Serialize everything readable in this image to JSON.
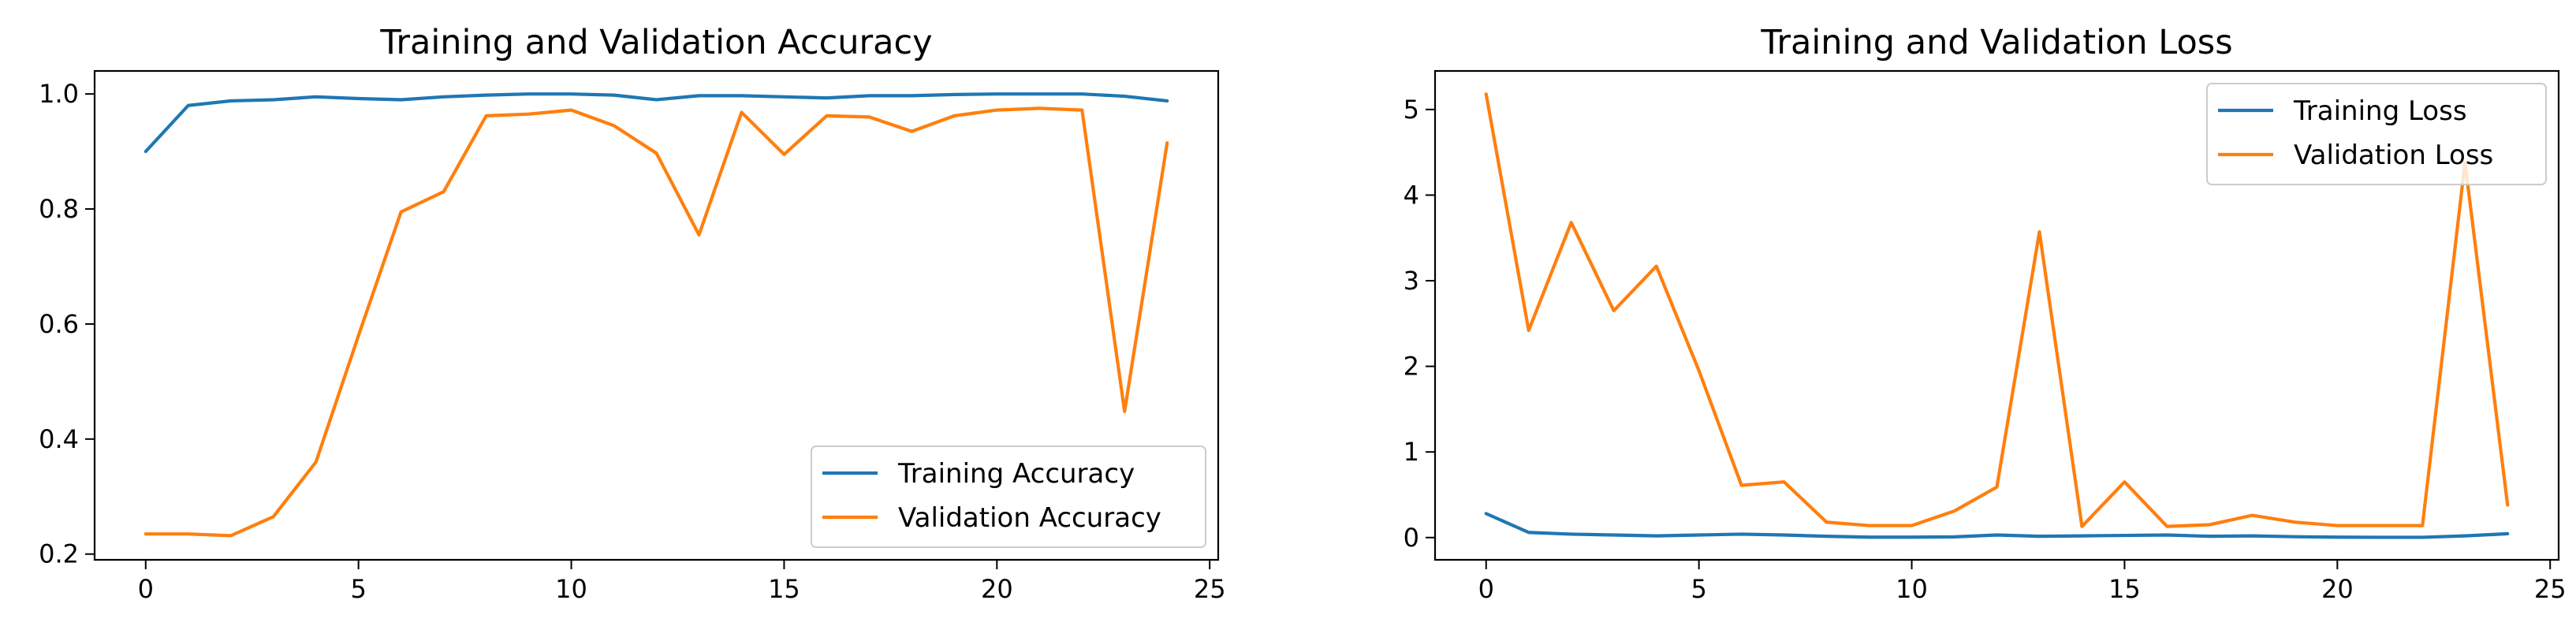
{
  "chart_data": [
    {
      "type": "line",
      "title": "Training and Validation Accuracy",
      "xlabel": "",
      "ylabel": "",
      "xlim": [
        -1.2,
        25.2
      ],
      "ylim": [
        0.19,
        1.04
      ],
      "xticks": [
        0,
        5,
        10,
        15,
        20,
        25
      ],
      "yticks": [
        0.2,
        0.4,
        0.6,
        0.8,
        1.0
      ],
      "ytick_decimals": 1,
      "grid": false,
      "legend_position": "lower-right",
      "x": [
        0,
        1,
        2,
        3,
        4,
        5,
        6,
        7,
        8,
        9,
        10,
        11,
        12,
        13,
        14,
        15,
        16,
        17,
        18,
        19,
        20,
        21,
        22,
        23,
        24
      ],
      "series": [
        {
          "name": "Training Accuracy",
          "color": "#1f77b4",
          "values": [
            0.9,
            0.98,
            0.988,
            0.99,
            0.995,
            0.992,
            0.99,
            0.995,
            0.998,
            1.0,
            1.0,
            0.998,
            0.99,
            0.997,
            0.997,
            0.995,
            0.993,
            0.997,
            0.997,
            0.999,
            1.0,
            1.0,
            1.0,
            0.996,
            0.988
          ]
        },
        {
          "name": "Validation Accuracy",
          "color": "#ff7f0e",
          "values": [
            0.235,
            0.235,
            0.232,
            0.265,
            0.36,
            0.58,
            0.795,
            0.83,
            0.962,
            0.965,
            0.972,
            0.945,
            0.897,
            0.755,
            0.968,
            0.895,
            0.962,
            0.96,
            0.935,
            0.962,
            0.972,
            0.975,
            0.972,
            0.448,
            0.915
          ]
        }
      ]
    },
    {
      "type": "line",
      "title": "Training and Validation Loss",
      "xlabel": "",
      "ylabel": "",
      "xlim": [
        -1.2,
        25.2
      ],
      "ylim": [
        -0.26,
        5.45
      ],
      "xticks": [
        0,
        5,
        10,
        15,
        20,
        25
      ],
      "yticks": [
        0,
        1,
        2,
        3,
        4,
        5
      ],
      "ytick_decimals": 0,
      "grid": false,
      "legend_position": "upper-right",
      "x": [
        0,
        1,
        2,
        3,
        4,
        5,
        6,
        7,
        8,
        9,
        10,
        11,
        12,
        13,
        14,
        15,
        16,
        17,
        18,
        19,
        20,
        21,
        22,
        23,
        24
      ],
      "series": [
        {
          "name": "Training Loss",
          "color": "#1f77b4",
          "values": [
            0.28,
            0.06,
            0.04,
            0.03,
            0.02,
            0.03,
            0.04,
            0.03,
            0.015,
            0.005,
            0.005,
            0.008,
            0.03,
            0.015,
            0.02,
            0.025,
            0.03,
            0.015,
            0.02,
            0.01,
            0.005,
            0.003,
            0.003,
            0.02,
            0.045
          ]
        },
        {
          "name": "Validation Loss",
          "color": "#ff7f0e",
          "values": [
            5.18,
            2.42,
            3.68,
            2.65,
            3.17,
            1.95,
            0.61,
            0.65,
            0.18,
            0.14,
            0.14,
            0.31,
            0.59,
            3.57,
            0.13,
            0.65,
            0.13,
            0.15,
            0.26,
            0.18,
            0.14,
            0.14,
            0.14,
            4.38,
            0.38
          ]
        }
      ]
    }
  ]
}
